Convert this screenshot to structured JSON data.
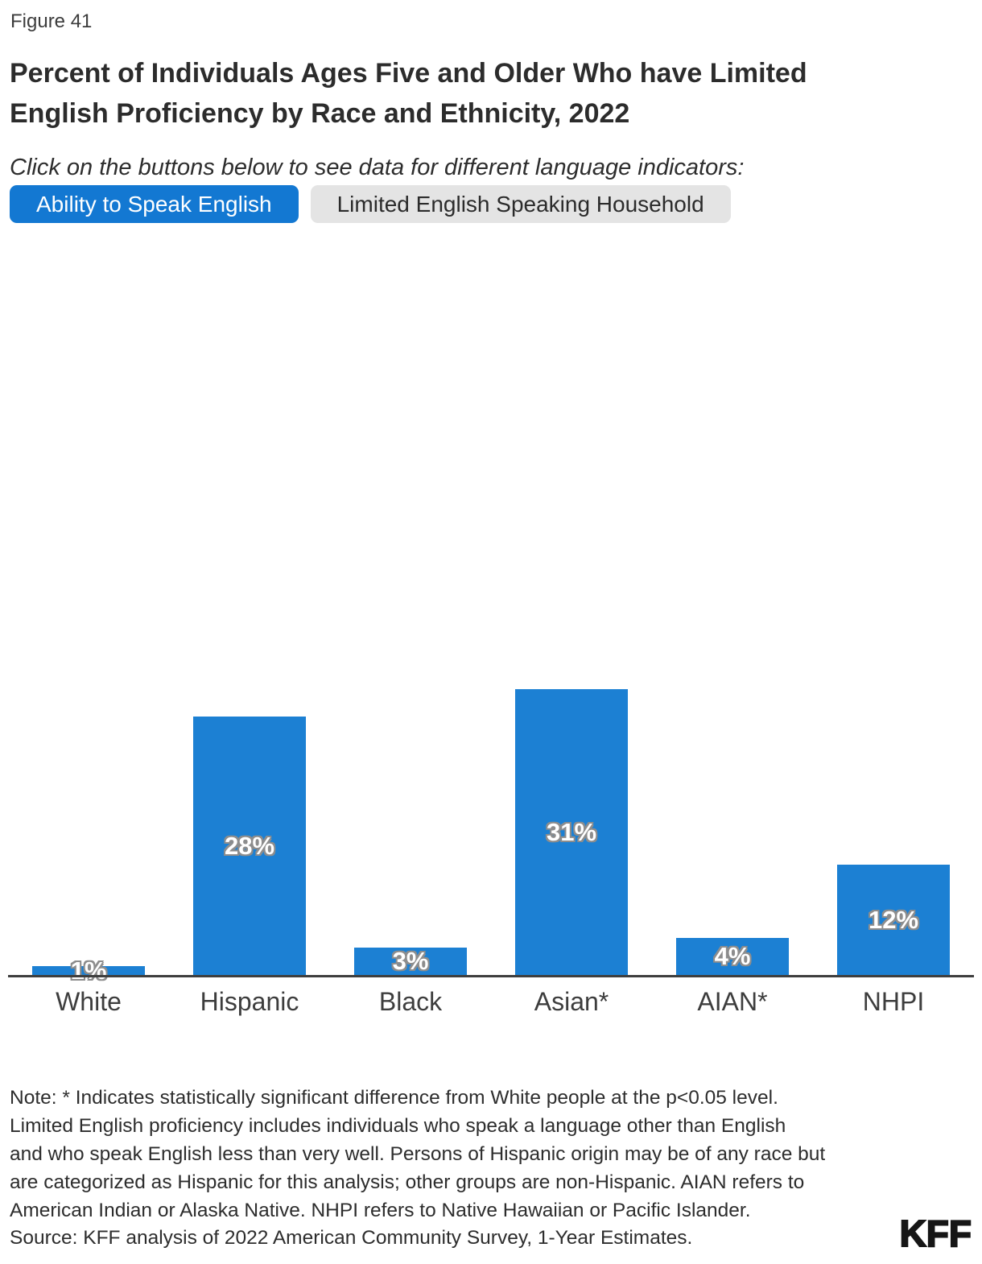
{
  "figure_label": "Figure 41",
  "title_lines": [
    "Percent of Individuals Ages Five and Older Who have Limited",
    "English Proficiency by Race and Ethnicity, 2022"
  ],
  "instruction": "Click on the buttons below to see data for different language indicators:",
  "buttons": [
    {
      "label": "Ability to Speak English",
      "active": true
    },
    {
      "label": "Limited English Speaking Household",
      "active": false
    }
  ],
  "chart_data": {
    "type": "bar",
    "categories": [
      "White",
      "Hispanic",
      "Black",
      "Asian*",
      "AIAN*",
      "NHPI"
    ],
    "values": [
      1,
      28,
      3,
      31,
      4,
      12
    ],
    "value_labels": [
      "1%",
      "28%",
      "3%",
      "31%",
      "4%",
      "12%"
    ],
    "title": "Percent of Individuals Ages Five and Older Who have Limited English Proficiency by Race and Ethnicity, 2022",
    "xlabel": "",
    "ylabel": "",
    "y_axis_visible": false,
    "grid": false,
    "legend": "none",
    "value_label_position": "center-of-bar",
    "bar_color": "#1C80D3"
  },
  "colors": {
    "active_button_bg": "#1378D2",
    "active_button_text": "#FFFFFF",
    "inactive_button_bg": "#E4E4E4",
    "inactive_button_text": "#2B2B2B",
    "bar_blue": "#1C80D3",
    "axis_line": "#3E3E3E"
  },
  "note_lines": [
    "Note: * Indicates statistically significant difference from White people at the p<0.05 level.",
    "Limited English proficiency includes individuals who speak a language other than English",
    "and who speak English less than very well. Persons of Hispanic origin may be of any race but",
    "are categorized as Hispanic for this analysis; other groups are non-Hispanic. AIAN refers to",
    "American Indian or Alaska Native. NHPI refers to Native Hawaiian or Pacific Islander."
  ],
  "source": "Source: KFF analysis of 2022 American Community Survey, 1-Year Estimates.",
  "logo_text": "KFF"
}
